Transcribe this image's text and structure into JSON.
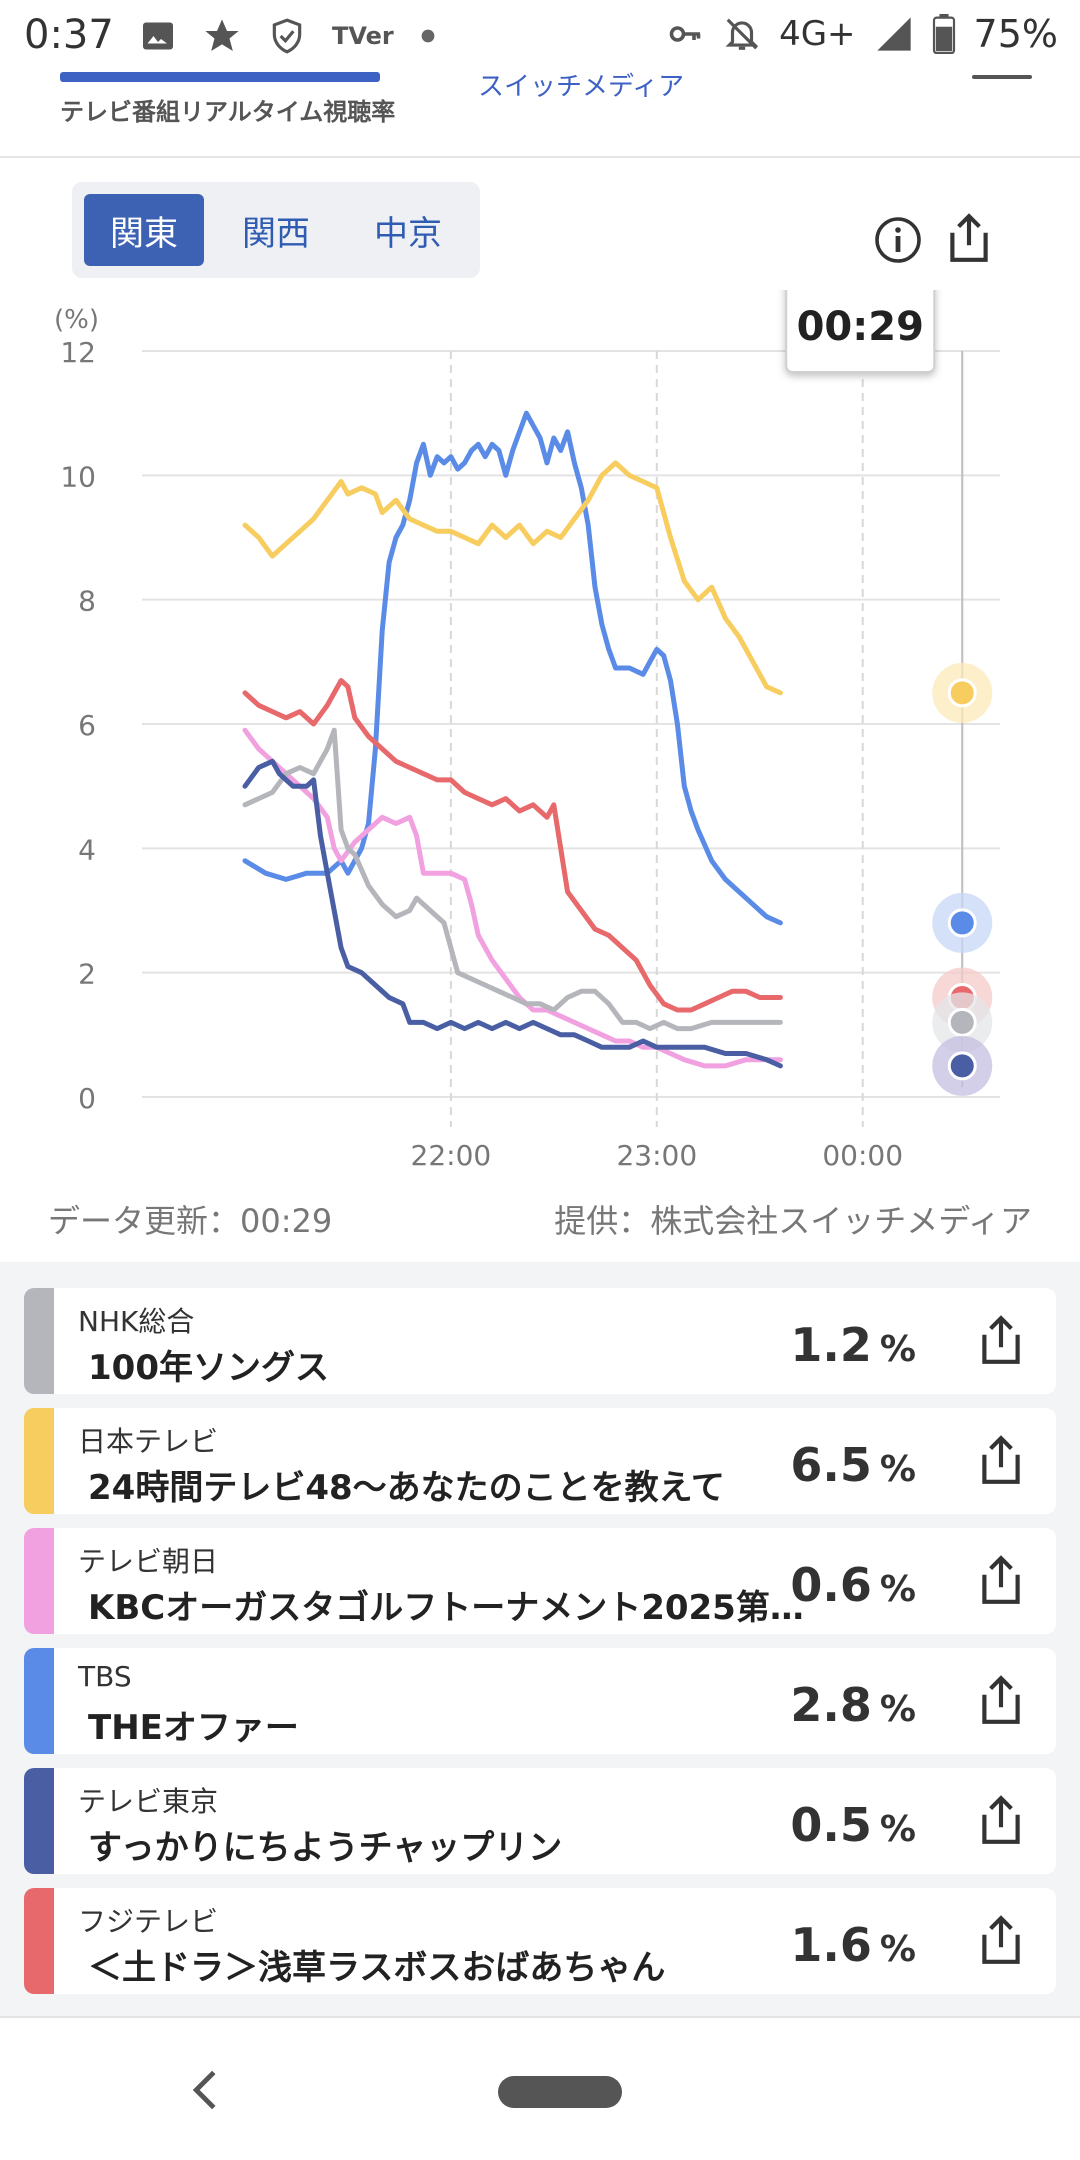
{
  "status_bar": {
    "time": "0:37",
    "network": "4G+",
    "battery": "75%",
    "icons": [
      "image-icon",
      "star-icon",
      "shield-icon",
      "tver-icon",
      "dot-icon",
      "key-icon",
      "bell-off-icon",
      "signal-icon",
      "battery-icon"
    ],
    "tver_label": "TVer"
  },
  "header": {
    "logo_sub": "テレビ番組リアルタイム視聴率",
    "partner": "スイッチメディア"
  },
  "regions": {
    "tabs": [
      "関東",
      "関西",
      "中京"
    ],
    "selected": 0
  },
  "tooltip_time": "00:29",
  "chart_data": {
    "type": "line",
    "ylabel": "(%)",
    "ylim": [
      0,
      12
    ],
    "yticks": [
      "0",
      "2",
      "4",
      "6",
      "8",
      "10",
      "12"
    ],
    "xticks": [
      {
        "t": 60,
        "label": "22:00"
      },
      {
        "t": 120,
        "label": "23:00"
      },
      {
        "t": 180,
        "label": "00:00"
      }
    ],
    "cursor_t": 209,
    "grid": true,
    "series": [
      {
        "key": "tbs",
        "color": "#5a8be6",
        "points": [
          [
            0,
            3.8
          ],
          [
            6,
            3.6
          ],
          [
            12,
            3.5
          ],
          [
            18,
            3.6
          ],
          [
            24,
            3.6
          ],
          [
            28,
            3.8
          ],
          [
            30,
            3.6
          ],
          [
            34,
            4.0
          ],
          [
            36,
            4.4
          ],
          [
            38,
            5.6
          ],
          [
            40,
            7.5
          ],
          [
            42,
            8.6
          ],
          [
            44,
            9.0
          ],
          [
            46,
            9.2
          ],
          [
            48,
            9.6
          ],
          [
            50,
            10.2
          ],
          [
            52,
            10.5
          ],
          [
            54,
            10.0
          ],
          [
            56,
            10.3
          ],
          [
            58,
            10.2
          ],
          [
            60,
            10.3
          ],
          [
            62,
            10.1
          ],
          [
            64,
            10.2
          ],
          [
            66,
            10.4
          ],
          [
            68,
            10.5
          ],
          [
            70,
            10.3
          ],
          [
            72,
            10.5
          ],
          [
            74,
            10.4
          ],
          [
            76,
            10.0
          ],
          [
            78,
            10.4
          ],
          [
            80,
            10.7
          ],
          [
            82,
            11.0
          ],
          [
            84,
            10.8
          ],
          [
            86,
            10.6
          ],
          [
            88,
            10.2
          ],
          [
            90,
            10.6
          ],
          [
            92,
            10.4
          ],
          [
            94,
            10.7
          ],
          [
            96,
            10.2
          ],
          [
            98,
            9.8
          ],
          [
            100,
            9.2
          ],
          [
            102,
            8.2
          ],
          [
            104,
            7.6
          ],
          [
            106,
            7.2
          ],
          [
            108,
            6.9
          ],
          [
            112,
            6.9
          ],
          [
            116,
            6.8
          ],
          [
            118,
            7.0
          ],
          [
            120,
            7.2
          ],
          [
            122,
            7.1
          ],
          [
            124,
            6.7
          ],
          [
            126,
            6.0
          ],
          [
            128,
            5.0
          ],
          [
            130,
            4.6
          ],
          [
            132,
            4.3
          ],
          [
            136,
            3.8
          ],
          [
            140,
            3.5
          ],
          [
            144,
            3.3
          ],
          [
            148,
            3.1
          ],
          [
            152,
            2.9
          ],
          [
            156,
            2.8
          ]
        ]
      },
      {
        "key": "ntv",
        "color": "#f7cd60",
        "points": [
          [
            0,
            9.2
          ],
          [
            4,
            9.0
          ],
          [
            8,
            8.7
          ],
          [
            12,
            8.9
          ],
          [
            16,
            9.1
          ],
          [
            20,
            9.3
          ],
          [
            24,
            9.6
          ],
          [
            28,
            9.9
          ],
          [
            30,
            9.7
          ],
          [
            34,
            9.8
          ],
          [
            38,
            9.7
          ],
          [
            40,
            9.4
          ],
          [
            44,
            9.6
          ],
          [
            48,
            9.3
          ],
          [
            52,
            9.2
          ],
          [
            56,
            9.1
          ],
          [
            60,
            9.1
          ],
          [
            64,
            9.0
          ],
          [
            68,
            8.9
          ],
          [
            72,
            9.2
          ],
          [
            76,
            9.0
          ],
          [
            80,
            9.2
          ],
          [
            84,
            8.9
          ],
          [
            88,
            9.1
          ],
          [
            92,
            9.0
          ],
          [
            96,
            9.3
          ],
          [
            100,
            9.6
          ],
          [
            104,
            10.0
          ],
          [
            108,
            10.2
          ],
          [
            112,
            10.0
          ],
          [
            116,
            9.9
          ],
          [
            120,
            9.8
          ],
          [
            124,
            9.0
          ],
          [
            128,
            8.3
          ],
          [
            132,
            8.0
          ],
          [
            136,
            8.2
          ],
          [
            140,
            7.7
          ],
          [
            144,
            7.4
          ],
          [
            148,
            7.0
          ],
          [
            152,
            6.6
          ],
          [
            156,
            6.5
          ]
        ]
      },
      {
        "key": "fuji",
        "color": "#e8696b",
        "points": [
          [
            0,
            6.5
          ],
          [
            4,
            6.3
          ],
          [
            8,
            6.2
          ],
          [
            12,
            6.1
          ],
          [
            16,
            6.2
          ],
          [
            20,
            6.0
          ],
          [
            24,
            6.3
          ],
          [
            28,
            6.7
          ],
          [
            30,
            6.6
          ],
          [
            32,
            6.1
          ],
          [
            36,
            5.8
          ],
          [
            40,
            5.6
          ],
          [
            44,
            5.4
          ],
          [
            48,
            5.3
          ],
          [
            52,
            5.2
          ],
          [
            56,
            5.1
          ],
          [
            60,
            5.1
          ],
          [
            64,
            4.9
          ],
          [
            68,
            4.8
          ],
          [
            72,
            4.7
          ],
          [
            76,
            4.8
          ],
          [
            80,
            4.6
          ],
          [
            84,
            4.7
          ],
          [
            88,
            4.5
          ],
          [
            90,
            4.7
          ],
          [
            92,
            4.0
          ],
          [
            94,
            3.3
          ],
          [
            98,
            3.0
          ],
          [
            102,
            2.7
          ],
          [
            106,
            2.6
          ],
          [
            110,
            2.4
          ],
          [
            114,
            2.2
          ],
          [
            118,
            1.8
          ],
          [
            122,
            1.5
          ],
          [
            126,
            1.4
          ],
          [
            130,
            1.4
          ],
          [
            134,
            1.5
          ],
          [
            138,
            1.6
          ],
          [
            142,
            1.7
          ],
          [
            146,
            1.7
          ],
          [
            150,
            1.6
          ],
          [
            156,
            1.6
          ]
        ]
      },
      {
        "key": "asahi",
        "color": "#f2a1e0",
        "points": [
          [
            0,
            5.9
          ],
          [
            4,
            5.6
          ],
          [
            8,
            5.4
          ],
          [
            12,
            5.2
          ],
          [
            16,
            5.0
          ],
          [
            20,
            4.8
          ],
          [
            24,
            4.5
          ],
          [
            26,
            4.0
          ],
          [
            28,
            3.8
          ],
          [
            32,
            4.1
          ],
          [
            36,
            4.3
          ],
          [
            40,
            4.5
          ],
          [
            44,
            4.4
          ],
          [
            48,
            4.5
          ],
          [
            50,
            4.2
          ],
          [
            52,
            3.6
          ],
          [
            56,
            3.6
          ],
          [
            60,
            3.6
          ],
          [
            64,
            3.5
          ],
          [
            66,
            3.1
          ],
          [
            68,
            2.6
          ],
          [
            72,
            2.2
          ],
          [
            76,
            1.9
          ],
          [
            80,
            1.6
          ],
          [
            84,
            1.4
          ],
          [
            88,
            1.4
          ],
          [
            92,
            1.3
          ],
          [
            96,
            1.2
          ],
          [
            100,
            1.1
          ],
          [
            104,
            1.0
          ],
          [
            108,
            0.9
          ],
          [
            112,
            0.9
          ],
          [
            116,
            0.8
          ],
          [
            120,
            0.8
          ],
          [
            124,
            0.7
          ],
          [
            128,
            0.6
          ],
          [
            134,
            0.5
          ],
          [
            140,
            0.5
          ],
          [
            146,
            0.6
          ],
          [
            152,
            0.6
          ],
          [
            156,
            0.6
          ]
        ]
      },
      {
        "key": "nhk",
        "color": "#b4b6bc",
        "points": [
          [
            0,
            4.7
          ],
          [
            4,
            4.8
          ],
          [
            8,
            4.9
          ],
          [
            12,
            5.2
          ],
          [
            16,
            5.3
          ],
          [
            20,
            5.2
          ],
          [
            24,
            5.6
          ],
          [
            26,
            5.9
          ],
          [
            28,
            4.3
          ],
          [
            30,
            4.0
          ],
          [
            32,
            3.9
          ],
          [
            36,
            3.4
          ],
          [
            40,
            3.1
          ],
          [
            44,
            2.9
          ],
          [
            48,
            3.0
          ],
          [
            50,
            3.2
          ],
          [
            54,
            3.0
          ],
          [
            58,
            2.8
          ],
          [
            62,
            2.0
          ],
          [
            66,
            1.9
          ],
          [
            70,
            1.8
          ],
          [
            74,
            1.7
          ],
          [
            78,
            1.6
          ],
          [
            82,
            1.5
          ],
          [
            86,
            1.5
          ],
          [
            90,
            1.4
          ],
          [
            94,
            1.6
          ],
          [
            98,
            1.7
          ],
          [
            102,
            1.7
          ],
          [
            106,
            1.5
          ],
          [
            110,
            1.2
          ],
          [
            114,
            1.2
          ],
          [
            118,
            1.1
          ],
          [
            122,
            1.2
          ],
          [
            126,
            1.1
          ],
          [
            130,
            1.1
          ],
          [
            136,
            1.2
          ],
          [
            142,
            1.2
          ],
          [
            148,
            1.2
          ],
          [
            156,
            1.2
          ]
        ]
      },
      {
        "key": "tx",
        "color": "#4a5ea3",
        "points": [
          [
            0,
            5.0
          ],
          [
            4,
            5.3
          ],
          [
            8,
            5.4
          ],
          [
            10,
            5.2
          ],
          [
            14,
            5.0
          ],
          [
            18,
            5.0
          ],
          [
            20,
            5.1
          ],
          [
            22,
            4.2
          ],
          [
            24,
            3.6
          ],
          [
            26,
            3.0
          ],
          [
            28,
            2.4
          ],
          [
            30,
            2.1
          ],
          [
            34,
            2.0
          ],
          [
            38,
            1.8
          ],
          [
            42,
            1.6
          ],
          [
            46,
            1.5
          ],
          [
            48,
            1.2
          ],
          [
            52,
            1.2
          ],
          [
            56,
            1.1
          ],
          [
            60,
            1.2
          ],
          [
            64,
            1.1
          ],
          [
            68,
            1.2
          ],
          [
            72,
            1.1
          ],
          [
            76,
            1.2
          ],
          [
            80,
            1.1
          ],
          [
            84,
            1.2
          ],
          [
            88,
            1.1
          ],
          [
            92,
            1.0
          ],
          [
            96,
            1.0
          ],
          [
            100,
            0.9
          ],
          [
            104,
            0.8
          ],
          [
            108,
            0.8
          ],
          [
            112,
            0.8
          ],
          [
            116,
            0.9
          ],
          [
            120,
            0.8
          ],
          [
            124,
            0.8
          ],
          [
            128,
            0.8
          ],
          [
            134,
            0.8
          ],
          [
            140,
            0.7
          ],
          [
            146,
            0.7
          ],
          [
            152,
            0.6
          ],
          [
            156,
            0.5
          ]
        ]
      }
    ]
  },
  "chart_end_dots": [
    {
      "key": "ntv",
      "value": 6.5,
      "color": "#f7cd60",
      "halo": "#fbeab8"
    },
    {
      "key": "tbs",
      "value": 2.8,
      "color": "#5a8be6",
      "halo": "#c7d7f6"
    },
    {
      "key": "fuji",
      "value": 1.6,
      "color": "#e8696b",
      "halo": "#f6c9c9"
    },
    {
      "key": "nhk",
      "value": 1.2,
      "color": "#b4b6bc",
      "halo": "#e4e5e8"
    },
    {
      "key": "tx",
      "value": 0.5,
      "color": "#4a5ea3",
      "halo": "#c5bfe0"
    }
  ],
  "footer": {
    "updated": "データ更新：00:29",
    "provider": "提供：株式会社スイッチメディア"
  },
  "programs": [
    {
      "station": "NHK総合",
      "program": "100年ソングス",
      "rating": "1.2",
      "color": "#b4b6bc"
    },
    {
      "station": "日本テレビ",
      "program": "24時間テレビ48〜あなたのことを教えて",
      "rating": "6.5",
      "color": "#f7cd60"
    },
    {
      "station": "テレビ朝日",
      "program": "KBCオーガスタゴルフトーナメント2025第…",
      "rating": "0.6",
      "color": "#f2a1e0"
    },
    {
      "station": "TBS",
      "program": "THEオファー",
      "rating": "2.8",
      "color": "#5a8be6"
    },
    {
      "station": "テレビ東京",
      "program": "すっかりにちようチャップリン",
      "rating": "0.5",
      "color": "#4a5ea3"
    },
    {
      "station": "フジテレビ",
      "program": "＜土ドラ＞浅草ラスボスおばあちゃん",
      "rating": "1.6",
      "color": "#e8696b"
    }
  ],
  "percent_unit": "%"
}
